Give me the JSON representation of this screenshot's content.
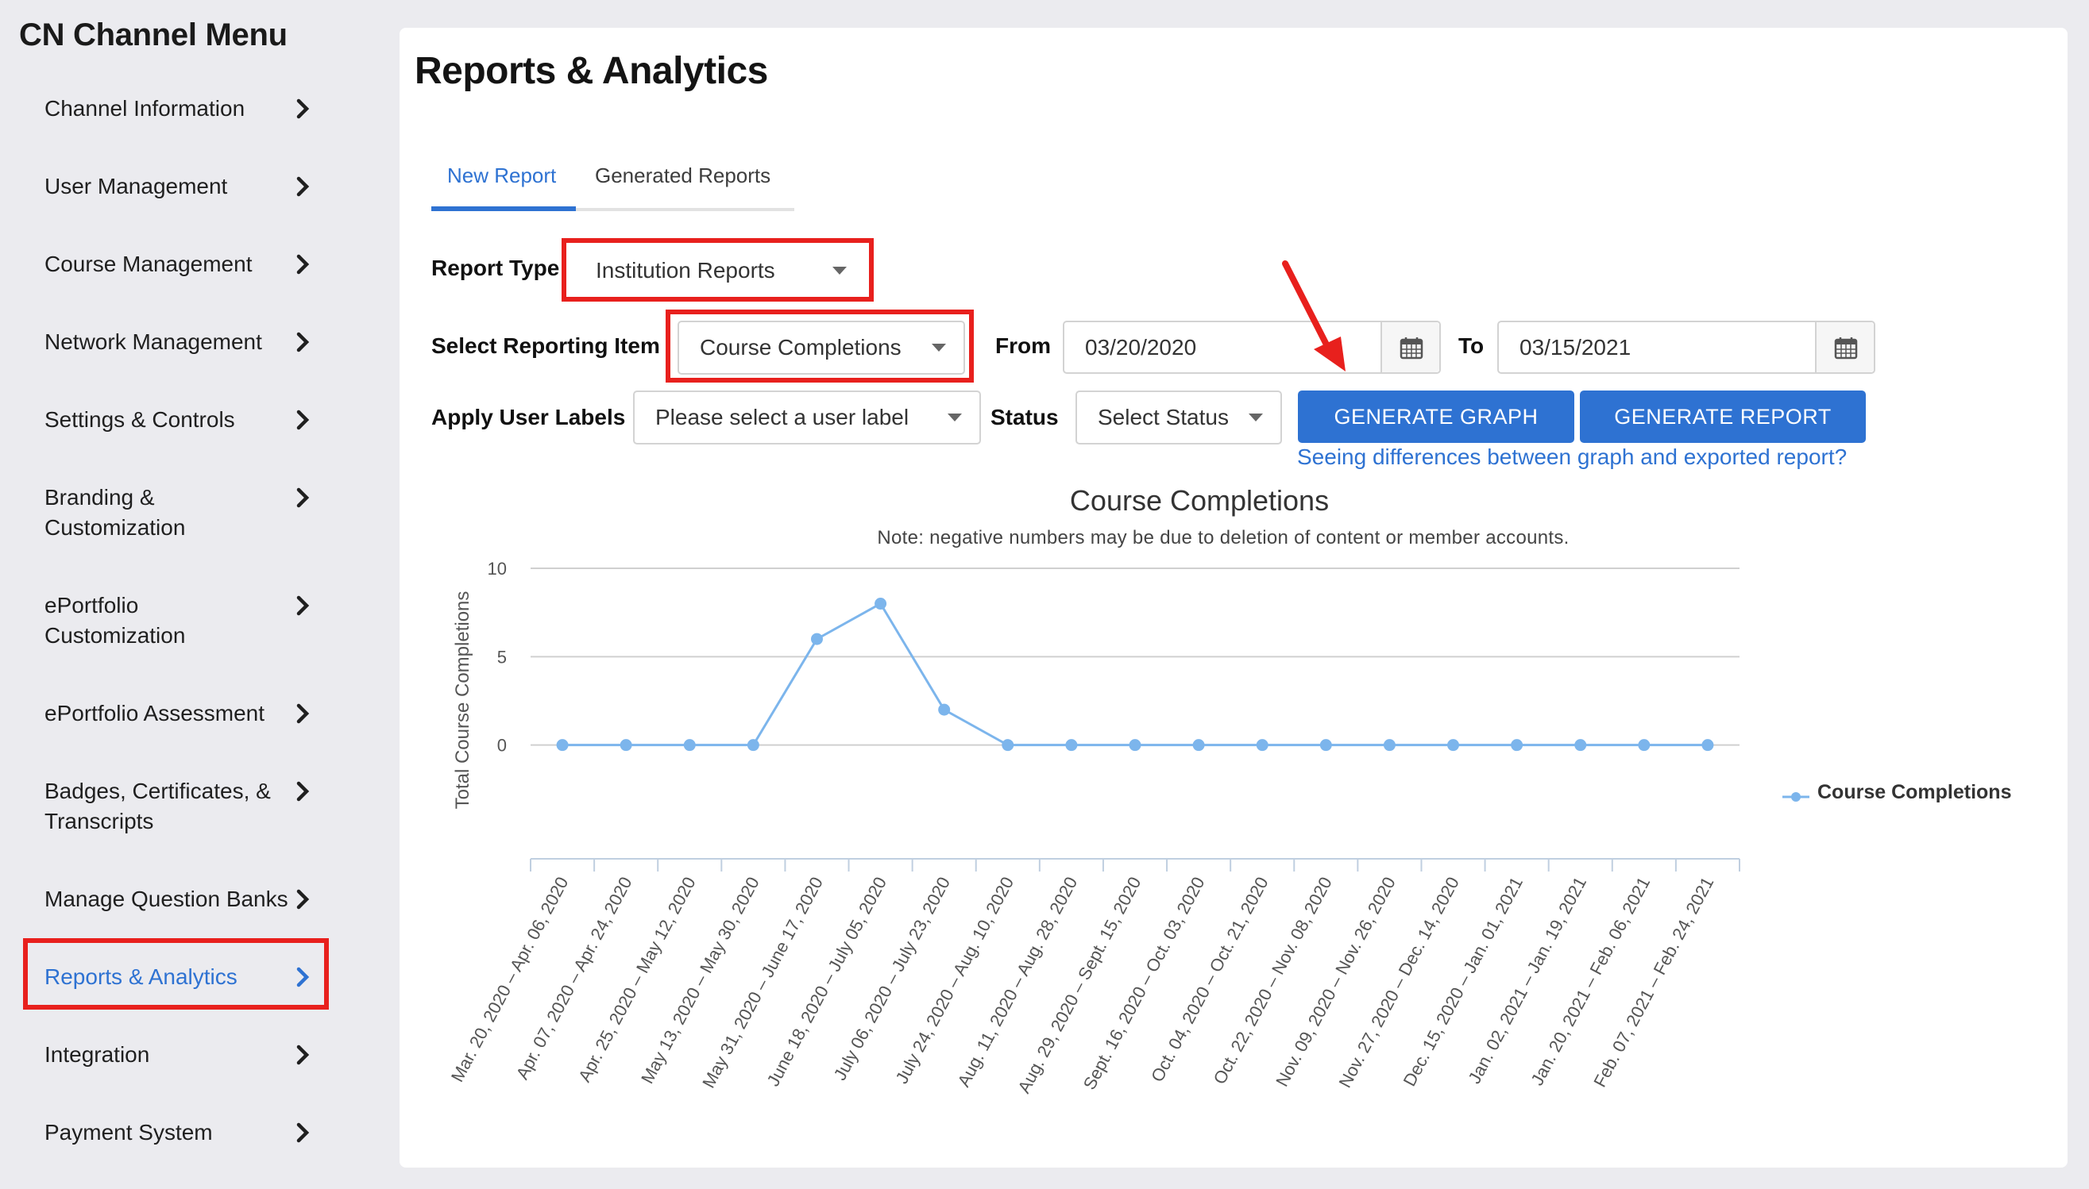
{
  "sidebar": {
    "title": "CN Channel Menu",
    "items": [
      {
        "label": "Channel Information"
      },
      {
        "label": "User Management"
      },
      {
        "label": "Course Management"
      },
      {
        "label": "Network Management"
      },
      {
        "label": "Settings & Controls"
      },
      {
        "label": "Branding & Customization"
      },
      {
        "label": "ePortfolio Customization"
      },
      {
        "label": "ePortfolio Assessment"
      },
      {
        "label": "Badges, Certificates, & Transcripts"
      },
      {
        "label": "Manage Question Banks"
      },
      {
        "label": "Reports & Analytics",
        "active": true
      },
      {
        "label": "Integration"
      },
      {
        "label": "Payment System"
      }
    ]
  },
  "main": {
    "title": "Reports & Analytics",
    "tabs": [
      {
        "label": "New Report",
        "active": true
      },
      {
        "label": "Generated Reports"
      }
    ],
    "form": {
      "report_type_label": "Report Type",
      "report_type_value": "Institution Reports",
      "reporting_item_label": "Select Reporting Item",
      "reporting_item_value": "Course Completions",
      "from_label": "From",
      "from_value": "03/20/2020",
      "to_label": "To",
      "to_value": "03/15/2021",
      "user_labels_label": "Apply User Labels",
      "user_labels_placeholder": "Please select a user label",
      "status_label": "Status",
      "status_placeholder": "Select Status",
      "generate_graph": "GENERATE GRAPH",
      "generate_report": "GENERATE REPORT",
      "help_link": "Seeing differences between graph and exported report?"
    }
  },
  "colors": {
    "accent": "#2e72d2",
    "highlight": "#e8201d",
    "series": "#7cb5ec"
  },
  "chart_data": {
    "type": "line",
    "title": "Course Completions",
    "subtitle": "Note: negative numbers may be due to deletion of content or member accounts.",
    "ylabel": "Total Course Completions",
    "xlabel": "",
    "yticks": [
      0,
      5,
      10
    ],
    "ylim": [
      -5,
      10
    ],
    "grid": true,
    "legend_position": "right",
    "categories": [
      "Mar. 20, 2020 – Apr. 06, 2020",
      "Apr. 07, 2020 – Apr. 24, 2020",
      "Apr. 25, 2020 – May 12, 2020",
      "May 13, 2020 – May 30, 2020",
      "May 31, 2020 – June 17, 2020",
      "June 18, 2020 – July 05, 2020",
      "July 06, 2020 – July 23, 2020",
      "July 24, 2020 – Aug. 10, 2020",
      "Aug. 11, 2020 – Aug. 28, 2020",
      "Aug. 29, 2020 – Sept. 15, 2020",
      "Sept. 16, 2020 – Oct. 03, 2020",
      "Oct. 04, 2020 – Oct. 21, 2020",
      "Oct. 22, 2020 – Nov. 08, 2020",
      "Nov. 09, 2020 – Nov. 26, 2020",
      "Nov. 27, 2020 – Dec. 14, 2020",
      "Dec. 15, 2020 – Jan. 01, 2021",
      "Jan. 02, 2021 – Jan. 19, 2021",
      "Jan. 20, 2021 – Feb. 06, 2021",
      "Feb. 07, 2021 – Feb. 24, 2021"
    ],
    "series": [
      {
        "name": "Course Completions",
        "values": [
          0,
          0,
          0,
          0,
          6,
          8,
          2,
          0,
          0,
          0,
          0,
          0,
          0,
          0,
          0,
          0,
          0,
          0,
          0
        ]
      }
    ]
  }
}
